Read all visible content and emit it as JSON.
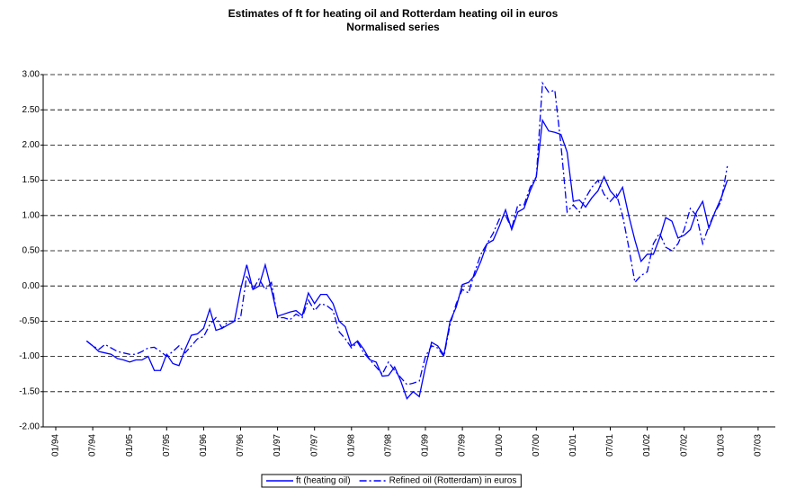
{
  "chart_data": {
    "type": "line",
    "title": "Estimates of ft for heating oil and Rotterdam heating oil in euros",
    "subtitle": "Normalised series",
    "categories": [
      "01/94",
      null,
      null,
      null,
      null,
      null,
      "07/94",
      null,
      null,
      null,
      null,
      null,
      "01/95",
      null,
      null,
      null,
      null,
      null,
      "07/95",
      null,
      null,
      null,
      null,
      null,
      "01/96",
      null,
      null,
      null,
      null,
      null,
      "07/96",
      null,
      null,
      null,
      null,
      null,
      "01/97",
      null,
      null,
      null,
      null,
      null,
      "07/97",
      null,
      null,
      null,
      null,
      null,
      "01/98",
      null,
      null,
      null,
      null,
      null,
      "07/98",
      null,
      null,
      null,
      null,
      null,
      "01/99",
      null,
      null,
      null,
      null,
      null,
      "07/99",
      null,
      null,
      null,
      null,
      null,
      "01/00",
      null,
      null,
      null,
      null,
      null,
      "07/00",
      null,
      null,
      null,
      null,
      null,
      "01/01",
      null,
      null,
      null,
      null,
      null,
      "07/01",
      null,
      null,
      null,
      null,
      null,
      "01/02",
      null,
      null,
      null,
      null,
      null,
      "07/02",
      null,
      null,
      null,
      null,
      null,
      "01/03",
      null,
      null,
      null,
      null,
      null,
      "07/03"
    ],
    "series": [
      {
        "name": "ft (heating oil)",
        "color": "#0000ff",
        "dash": "none",
        "values": [
          null,
          null,
          null,
          null,
          null,
          -0.78,
          -0.85,
          -0.93,
          -0.95,
          -0.97,
          -1.03,
          -1.05,
          -1.08,
          -1.05,
          -1.05,
          -1.0,
          -1.2,
          -1.2,
          -0.97,
          -1.1,
          -1.13,
          -0.9,
          -0.7,
          -0.68,
          -0.6,
          -0.33,
          -0.63,
          -0.6,
          -0.55,
          -0.5,
          -0.05,
          0.3,
          -0.05,
          0.0,
          0.3,
          -0.05,
          -0.43,
          -0.4,
          -0.37,
          -0.35,
          -0.42,
          -0.1,
          -0.25,
          -0.12,
          -0.12,
          -0.25,
          -0.5,
          -0.58,
          -0.85,
          -0.78,
          -0.9,
          -1.05,
          -1.08,
          -1.28,
          -1.27,
          -1.15,
          -1.35,
          -1.6,
          -1.5,
          -1.57,
          -1.15,
          -0.8,
          -0.85,
          -0.98,
          -0.5,
          -0.3,
          0.02,
          0.05,
          0.15,
          0.35,
          0.6,
          0.65,
          0.85,
          1.08,
          0.8,
          1.05,
          1.1,
          1.35,
          1.55,
          2.35,
          2.2,
          2.18,
          2.15,
          1.9,
          1.2,
          1.22,
          1.12,
          1.25,
          1.35,
          1.55,
          1.35,
          1.25,
          1.4,
          1.0,
          0.65,
          0.35,
          0.45,
          0.45,
          0.68,
          0.97,
          0.92,
          0.68,
          0.72,
          0.8,
          1.05,
          1.2,
          0.82,
          1.05,
          1.25,
          1.5,
          null,
          null,
          null,
          null,
          null
        ]
      },
      {
        "name": "Refined oil (Rotterdam) in euros",
        "color": "#0000ff",
        "dash": "8 3 2 3",
        "values": [
          null,
          null,
          null,
          null,
          null,
          -0.78,
          -0.85,
          -0.9,
          -0.83,
          -0.88,
          -0.93,
          -0.95,
          -0.97,
          -0.97,
          -0.93,
          -0.88,
          -0.87,
          -0.93,
          -1.0,
          -0.93,
          -0.85,
          -0.95,
          -0.85,
          -0.75,
          -0.72,
          -0.55,
          -0.45,
          -0.6,
          -0.5,
          -0.5,
          -0.45,
          0.15,
          -0.05,
          0.1,
          -0.05,
          0.05,
          -0.45,
          -0.45,
          -0.48,
          -0.4,
          -0.45,
          -0.2,
          -0.35,
          -0.25,
          -0.28,
          -0.35,
          -0.65,
          -0.75,
          -0.88,
          -0.8,
          -0.95,
          -1.05,
          -1.15,
          -1.25,
          -1.08,
          -1.2,
          -1.3,
          -1.4,
          -1.38,
          -1.35,
          -1.0,
          -0.85,
          -0.88,
          -1.0,
          -0.55,
          -0.25,
          -0.05,
          -0.1,
          0.2,
          0.45,
          0.6,
          0.75,
          0.95,
          1.0,
          0.82,
          1.15,
          1.15,
          1.4,
          1.55,
          2.88,
          2.75,
          2.78,
          2.0,
          1.05,
          1.15,
          1.05,
          1.25,
          1.4,
          1.5,
          1.3,
          1.2,
          1.3,
          1.0,
          0.55,
          0.05,
          0.15,
          0.2,
          0.6,
          0.75,
          0.55,
          0.5,
          0.6,
          0.8,
          1.1,
          1.0,
          0.6,
          0.85,
          1.05,
          1.2,
          1.7,
          null,
          null,
          null,
          null,
          null
        ]
      }
    ],
    "ylim": [
      -2,
      3
    ],
    "yticks": [
      {
        "value": -2,
        "label": "-2.00"
      },
      {
        "value": -1.5,
        "label": "-1.50"
      },
      {
        "value": -1,
        "label": "-1.00"
      },
      {
        "value": -0.5,
        "label": "-0.50"
      },
      {
        "value": 0,
        "label": "0.00"
      },
      {
        "value": 0.5,
        "label": "0.50"
      },
      {
        "value": 1,
        "label": "1.00"
      },
      {
        "value": 1.5,
        "label": "1.50"
      },
      {
        "value": 2,
        "label": "2.00"
      },
      {
        "value": 2.5,
        "label": "2.50"
      },
      {
        "value": 3,
        "label": "3.00"
      }
    ],
    "grid": true,
    "legend": "bottom"
  }
}
